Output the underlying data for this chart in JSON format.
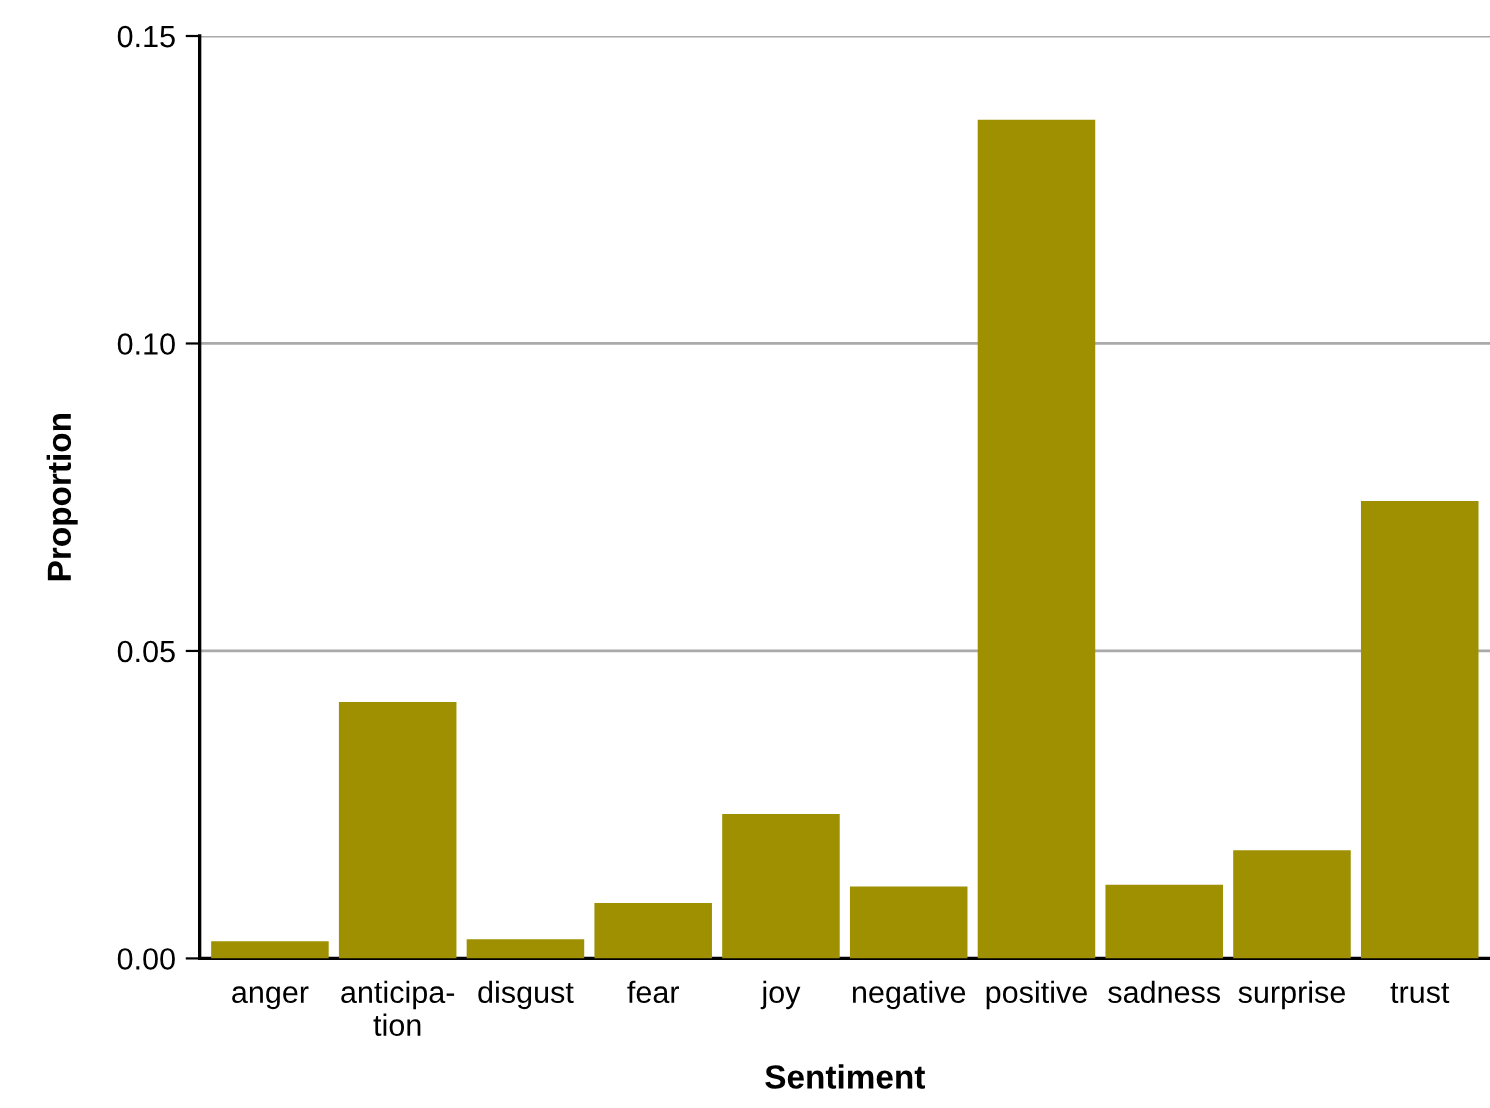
{
  "chart_data": {
    "type": "bar",
    "xlabel": "Sentiment",
    "ylabel": "Proportion",
    "categories": [
      "anger",
      "anticipa-\ntion",
      "disgust",
      "fear",
      "joy",
      "negative",
      "positive",
      "sadness",
      "surprise",
      "trust"
    ],
    "values": [
      0.0028,
      0.0417,
      0.0031,
      0.009,
      0.0235,
      0.0117,
      0.1364,
      0.012,
      0.0176,
      0.0744
    ],
    "color": "#9e9000",
    "ylim": [
      0,
      0.15
    ],
    "yticks": [
      {
        "value": 0,
        "label": "0.00"
      },
      {
        "value": 0.05,
        "label": "0.05"
      },
      {
        "value": 0.1,
        "label": "0.10"
      },
      {
        "value": 0.15,
        "label": "0.15"
      }
    ],
    "grid": "y"
  }
}
